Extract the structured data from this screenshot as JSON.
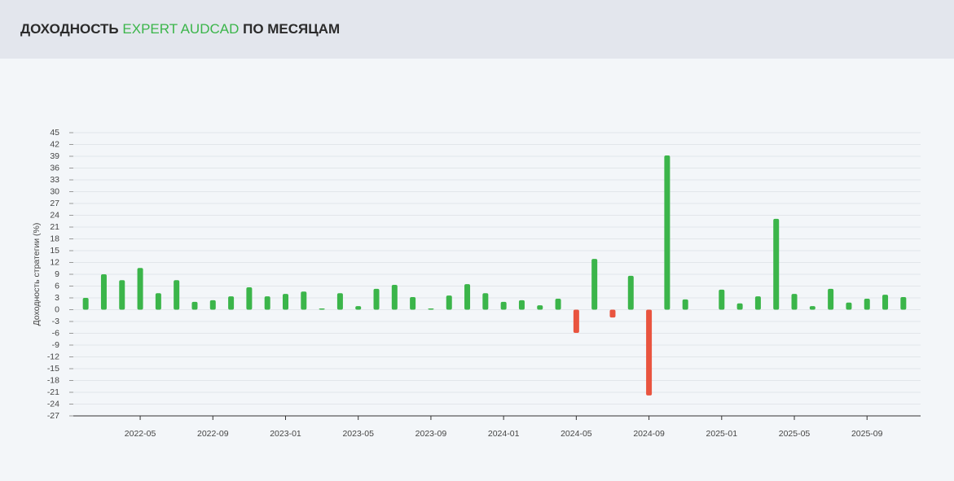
{
  "chart_data": {
    "type": "bar",
    "title": [
      "ДОХОДНОСТЬ",
      "EXPERT AUDCAD",
      "ПО МЕСЯЦАМ"
    ],
    "ylabel": "Доходность стратегии (%)",
    "categories": [
      null,
      null,
      null,
      "2022-05",
      null,
      null,
      null,
      "2022-09",
      null,
      null,
      null,
      "2023-01",
      null,
      null,
      null,
      "2023-05",
      null,
      null,
      null,
      "2023-09",
      null,
      null,
      null,
      "2024-01",
      null,
      null,
      null,
      "2024-05",
      null,
      null,
      null,
      "2024-09",
      null,
      null,
      null,
      "2025-01",
      null,
      null,
      null,
      "2025-05",
      null,
      null,
      null,
      "2025-09",
      null,
      null
    ],
    "values": [
      3.0,
      9.0,
      7.5,
      10.6,
      4.2,
      7.5,
      2.0,
      2.4,
      3.4,
      5.7,
      3.4,
      4.0,
      4.6,
      0.3,
      4.2,
      0.9,
      5.3,
      6.3,
      3.2,
      0.3,
      3.6,
      6.5,
      4.2,
      2.0,
      2.4,
      1.1,
      2.8,
      -5.9,
      12.9,
      -2.0,
      8.6,
      -21.8,
      39.2,
      2.6,
      0,
      5.1,
      1.6,
      3.4,
      23.1,
      4.0,
      0.9,
      5.3,
      1.8,
      2.8,
      3.8,
      3.2
    ],
    "color": "#3bb54a",
    "negative_color": "#e9543f",
    "ylim": [
      -27,
      45
    ],
    "yticks": [
      -27,
      -24,
      -21,
      -18,
      -15,
      -12,
      -9,
      -6,
      -3,
      0,
      3,
      6,
      9,
      12,
      15,
      18,
      21,
      24,
      27,
      30,
      33,
      36,
      39,
      42,
      45
    ],
    "grid": true
  }
}
